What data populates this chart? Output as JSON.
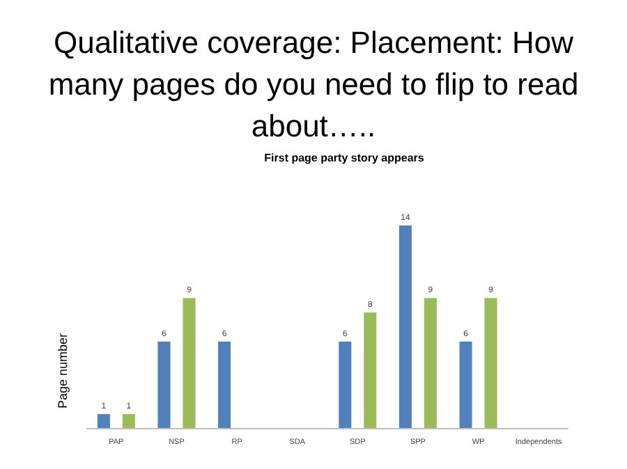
{
  "chart_data": {
    "type": "bar",
    "title": "Qualitative coverage: Placement: How many pages do you need to flip to read about…..",
    "subtitle": "First page party story appears",
    "ylabel": "Page number",
    "categories": [
      "PAP",
      "NSP",
      "RP",
      "SDA",
      "SDP",
      "SPP",
      "WP",
      "Independents"
    ],
    "series": [
      {
        "color": "#4f81bd",
        "values": [
          1,
          6,
          6,
          null,
          6,
          14,
          6,
          null
        ]
      },
      {
        "color": "#9bbb59",
        "values": [
          1,
          9,
          null,
          null,
          8,
          9,
          9,
          null
        ]
      }
    ],
    "data_labels": true
  }
}
